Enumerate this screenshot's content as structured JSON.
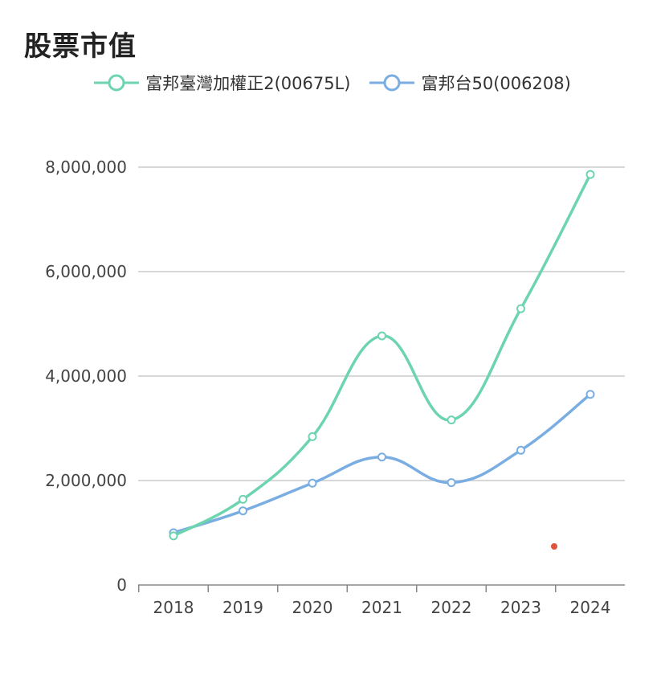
{
  "page": {
    "title": "股票市值"
  },
  "colors": {
    "series1": "#6dd4b0",
    "series2": "#7aaee3",
    "grid": "#cccccc",
    "axis": "#888888",
    "dot": "#e0523a"
  },
  "chart_data": {
    "type": "line",
    "title": "股票市值",
    "xlabel": "",
    "ylabel": "",
    "categories": [
      "2018",
      "2019",
      "2020",
      "2021",
      "2022",
      "2023",
      "2024"
    ],
    "ylim": [
      0,
      8000000
    ],
    "yticks": [
      0,
      2000000,
      4000000,
      6000000,
      8000000
    ],
    "ytick_labels": [
      "0",
      "2,000,000",
      "4,000,000",
      "6,000,000",
      "8,000,000"
    ],
    "grid": true,
    "legend_position": "top-center",
    "smooth": true,
    "series": [
      {
        "name": "富邦臺灣加權正2(00675L)",
        "values": [
          940000,
          1640000,
          2840000,
          4770000,
          3160000,
          5290000,
          7860000
        ]
      },
      {
        "name": "富邦台50(006208)",
        "values": [
          1000000,
          1420000,
          1950000,
          2450000,
          1960000,
          2580000,
          3650000
        ]
      }
    ]
  }
}
